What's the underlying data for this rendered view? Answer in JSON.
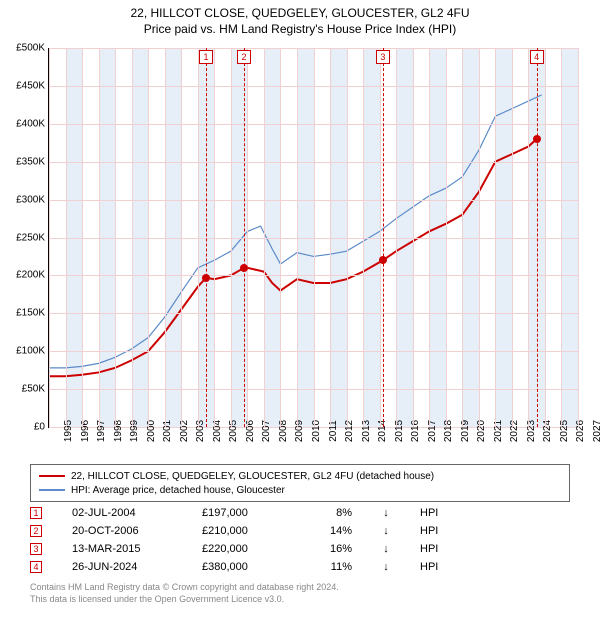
{
  "title": {
    "line1": "22, HILLCOT CLOSE, QUEDGELEY, GLOUCESTER, GL2 4FU",
    "line2": "Price paid vs. HM Land Registry's House Price Index (HPI)",
    "fontsize": 12,
    "color": "#000000"
  },
  "chart": {
    "type": "line",
    "background_color": "#ffffff",
    "grid_color": "#f0d0d0",
    "shade_color": "#e6eef8",
    "x": {
      "min": 1995,
      "max": 2027,
      "ticks": [
        1995,
        1996,
        1997,
        1998,
        1999,
        2000,
        2001,
        2002,
        2003,
        2004,
        2005,
        2006,
        2007,
        2008,
        2009,
        2010,
        2011,
        2012,
        2013,
        2014,
        2015,
        2016,
        2017,
        2018,
        2019,
        2020,
        2021,
        2022,
        2023,
        2024,
        2025,
        2026,
        2027
      ],
      "label_fontsize": 10,
      "shaded_alternate": true
    },
    "y": {
      "min": 0,
      "max": 500000,
      "ticks": [
        0,
        50000,
        100000,
        150000,
        200000,
        250000,
        300000,
        350000,
        400000,
        450000,
        500000
      ],
      "tick_labels": [
        "£0",
        "£50K",
        "£100K",
        "£150K",
        "£200K",
        "£250K",
        "£300K",
        "£350K",
        "£400K",
        "£450K",
        "£500K"
      ],
      "label_fontsize": 10
    },
    "series": [
      {
        "name": "22, HILLCOT CLOSE, QUEDGELEY, GLOUCESTER, GL2 4FU (detached house)",
        "color": "#cc0000",
        "line_width": 2,
        "points": [
          [
            1995.0,
            67000
          ],
          [
            1996.0,
            67000
          ],
          [
            1997.0,
            69000
          ],
          [
            1998.0,
            72000
          ],
          [
            1999.0,
            78000
          ],
          [
            2000.0,
            88000
          ],
          [
            2001.0,
            100000
          ],
          [
            2002.0,
            125000
          ],
          [
            2003.0,
            155000
          ],
          [
            2004.0,
            185000
          ],
          [
            2004.5,
            197000
          ],
          [
            2005.0,
            195000
          ],
          [
            2006.0,
            200000
          ],
          [
            2006.8,
            210000
          ],
          [
            2007.0,
            210000
          ],
          [
            2008.0,
            205000
          ],
          [
            2008.5,
            190000
          ],
          [
            2009.0,
            180000
          ],
          [
            2010.0,
            195000
          ],
          [
            2011.0,
            190000
          ],
          [
            2012.0,
            190000
          ],
          [
            2013.0,
            195000
          ],
          [
            2014.0,
            205000
          ],
          [
            2015.2,
            220000
          ],
          [
            2016.0,
            232000
          ],
          [
            2017.0,
            245000
          ],
          [
            2018.0,
            258000
          ],
          [
            2019.0,
            268000
          ],
          [
            2020.0,
            280000
          ],
          [
            2021.0,
            310000
          ],
          [
            2022.0,
            350000
          ],
          [
            2023.0,
            360000
          ],
          [
            2024.0,
            370000
          ],
          [
            2024.5,
            380000
          ]
        ]
      },
      {
        "name": "HPI: Average price, detached house, Gloucester",
        "color": "#5b8bc9",
        "line_width": 1.2,
        "points": [
          [
            1995.0,
            78000
          ],
          [
            1996.0,
            78000
          ],
          [
            1997.0,
            80000
          ],
          [
            1998.0,
            84000
          ],
          [
            1999.0,
            92000
          ],
          [
            2000.0,
            103000
          ],
          [
            2001.0,
            118000
          ],
          [
            2002.0,
            145000
          ],
          [
            2003.0,
            178000
          ],
          [
            2004.0,
            210000
          ],
          [
            2005.0,
            220000
          ],
          [
            2006.0,
            232000
          ],
          [
            2007.0,
            258000
          ],
          [
            2007.8,
            265000
          ],
          [
            2008.5,
            235000
          ],
          [
            2009.0,
            215000
          ],
          [
            2010.0,
            230000
          ],
          [
            2011.0,
            225000
          ],
          [
            2012.0,
            228000
          ],
          [
            2013.0,
            232000
          ],
          [
            2014.0,
            245000
          ],
          [
            2015.0,
            258000
          ],
          [
            2016.0,
            275000
          ],
          [
            2017.0,
            290000
          ],
          [
            2018.0,
            305000
          ],
          [
            2019.0,
            315000
          ],
          [
            2020.0,
            330000
          ],
          [
            2021.0,
            365000
          ],
          [
            2022.0,
            410000
          ],
          [
            2023.0,
            420000
          ],
          [
            2024.0,
            430000
          ],
          [
            2024.8,
            438000
          ]
        ]
      }
    ],
    "sale_markers": [
      {
        "n": "1",
        "year": 2004.5,
        "price": 197000
      },
      {
        "n": "2",
        "year": 2006.8,
        "price": 210000
      },
      {
        "n": "3",
        "year": 2015.2,
        "price": 220000
      },
      {
        "n": "4",
        "year": 2024.5,
        "price": 380000
      }
    ],
    "marker_dash_color": "#cc0000",
    "marker_point_color": "#cc0000"
  },
  "legend": {
    "items": [
      {
        "color": "#cc0000",
        "label": "22, HILLCOT CLOSE, QUEDGELEY, GLOUCESTER, GL2 4FU (detached house)"
      },
      {
        "color": "#5b8bc9",
        "label": "HPI: Average price, detached house, Gloucester"
      }
    ],
    "fontsize": 10
  },
  "sales_table": {
    "rows": [
      {
        "n": "1",
        "date": "02-JUL-2004",
        "price": "£197,000",
        "pct": "8%",
        "arrow": "↓",
        "suffix": "HPI"
      },
      {
        "n": "2",
        "date": "20-OCT-2006",
        "price": "£210,000",
        "pct": "14%",
        "arrow": "↓",
        "suffix": "HPI"
      },
      {
        "n": "3",
        "date": "13-MAR-2015",
        "price": "£220,000",
        "pct": "16%",
        "arrow": "↓",
        "suffix": "HPI"
      },
      {
        "n": "4",
        "date": "26-JUN-2024",
        "price": "£380,000",
        "pct": "11%",
        "arrow": "↓",
        "suffix": "HPI"
      }
    ],
    "fontsize": 11
  },
  "footer": {
    "line1": "Contains HM Land Registry data © Crown copyright and database right 2024.",
    "line2": "This data is licensed under the Open Government Licence v3.0.",
    "fontsize": 9,
    "color": "#888888"
  }
}
